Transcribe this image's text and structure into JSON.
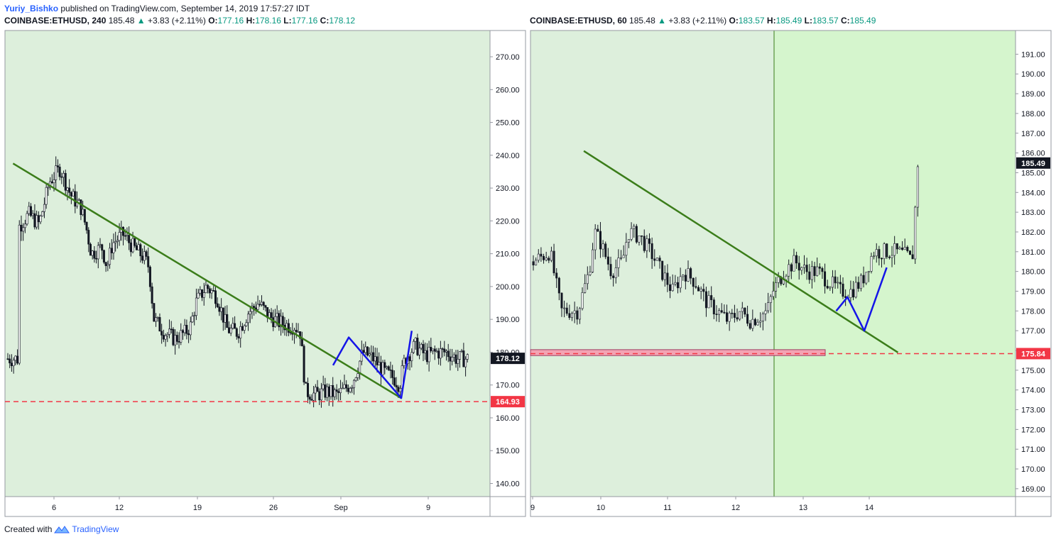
{
  "header": {
    "author": "Yuriy_Bishko",
    "published_text": "published on TradingView.com, September 14, 2019 17:57:27 IDT"
  },
  "footer": {
    "created_with": "Created with",
    "brand": "TradingView"
  },
  "colors": {
    "panel_bg": "#ddefdc",
    "highlight_bg": "#d5f5cd",
    "trendline": "#3b7d1a",
    "pattern": "#1515e8",
    "support": "#f23645",
    "zone_fill": "#f3a3b3",
    "candle": "#131722",
    "up": "#089981"
  },
  "charts": [
    {
      "symbol": "COINBASE:ETHUSD",
      "interval": "240",
      "last": "185.48",
      "arrow": "▲",
      "change": "+3.83 (+2.11%)",
      "o": "177.16",
      "h": "178.16",
      "l": "177.16",
      "c": "178.12",
      "y_ticks": [
        "270.00",
        "260.00",
        "250.00",
        "240.00",
        "230.00",
        "220.00",
        "210.00",
        "200.00",
        "190.00",
        "180.00",
        "170.00",
        "160.00",
        "150.00",
        "140.00"
      ],
      "x_ticks": [
        "6",
        "12",
        "19",
        "26",
        "Sep",
        "9"
      ],
      "price_badge": "178.12",
      "support_badge": "164.93"
    },
    {
      "symbol": "COINBASE:ETHUSD",
      "interval": "60",
      "last": "185.48",
      "arrow": "▲",
      "change": "+3.83 (+2.11%)",
      "o": "183.57",
      "h": "185.49",
      "l": "183.57",
      "c": "185.49",
      "y_ticks": [
        "191.00",
        "190.00",
        "189.00",
        "188.00",
        "187.00",
        "186.00",
        "185.00",
        "184.00",
        "183.00",
        "182.00",
        "181.00",
        "180.00",
        "179.00",
        "178.00",
        "177.00",
        "176.00",
        "175.00",
        "174.00",
        "173.00",
        "172.00",
        "171.00",
        "170.00",
        "169.00"
      ],
      "x_ticks": [
        "9",
        "10",
        "11",
        "12",
        "13",
        "14"
      ],
      "price_badge": "185.49",
      "support_badge": "175.84"
    }
  ],
  "chart_data": [
    {
      "type": "candlestick",
      "symbol": "COINBASE:ETHUSD",
      "interval": "240",
      "ylim": [
        136,
        278
      ],
      "x_ticks": [
        "6",
        "12",
        "19",
        "26",
        "Sep",
        "9"
      ],
      "close_path": [
        [
          2,
          218
        ],
        [
          4,
          222
        ],
        [
          6,
          219
        ],
        [
          8,
          232
        ],
        [
          10,
          236
        ],
        [
          12,
          228
        ],
        [
          14,
          224
        ],
        [
          15,
          218
        ],
        [
          16,
          210
        ],
        [
          18,
          212
        ],
        [
          19,
          206
        ],
        [
          20,
          213
        ],
        [
          22,
          216
        ],
        [
          24,
          212
        ],
        [
          26,
          209
        ],
        [
          27,
          206
        ],
        [
          28,
          190
        ],
        [
          30,
          186
        ],
        [
          32,
          184
        ],
        [
          34,
          186
        ],
        [
          35,
          188
        ],
        [
          36,
          195
        ],
        [
          38,
          200
        ],
        [
          40,
          197
        ],
        [
          42,
          187
        ],
        [
          44,
          186
        ],
        [
          46,
          192
        ],
        [
          48,
          195
        ],
        [
          50,
          191
        ],
        [
          52,
          189
        ],
        [
          54,
          188
        ],
        [
          55,
          188
        ],
        [
          56,
          186
        ],
        [
          57,
          168
        ],
        [
          59,
          167
        ],
        [
          61,
          168
        ],
        [
          63,
          167
        ],
        [
          64,
          168
        ],
        [
          66,
          171
        ],
        [
          68,
          180
        ],
        [
          70,
          178
        ],
        [
          72,
          174
        ],
        [
          74,
          172
        ],
        [
          75,
          170
        ],
        [
          76,
          178
        ],
        [
          78,
          182
        ],
        [
          80,
          179
        ],
        [
          82,
          180
        ],
        [
          84,
          180
        ],
        [
          86,
          178
        ],
        [
          88,
          178
        ]
      ],
      "trendlines": [
        {
          "name": "descending resistance",
          "points": [
            [
              1,
              237.5
            ],
            [
              75,
              166
            ]
          ]
        }
      ],
      "pattern_lines": [
        {
          "name": "projection zigzag",
          "points": [
            [
              62,
              176
            ],
            [
              65,
              184.5
            ],
            [
              75,
              166
            ],
            [
              77,
              186.5
            ]
          ]
        }
      ],
      "support": 164.93,
      "last_close": 178.12
    },
    {
      "type": "candlestick",
      "symbol": "COINBASE:ETHUSD",
      "interval": "60",
      "ylim": [
        168.6,
        192.2
      ],
      "x_ticks": [
        "9",
        "10",
        "11",
        "12",
        "13",
        "14"
      ],
      "close_path": [
        [
          0,
          180.5
        ],
        [
          3,
          181
        ],
        [
          5,
          178
        ],
        [
          8,
          178
        ],
        [
          10,
          180
        ],
        [
          11,
          182
        ],
        [
          12,
          181.5
        ],
        [
          14,
          180
        ],
        [
          16,
          180.5
        ],
        [
          17,
          182
        ],
        [
          19,
          181.8
        ],
        [
          21,
          181
        ],
        [
          23,
          180
        ],
        [
          25,
          179
        ],
        [
          27,
          180
        ],
        [
          29,
          179.5
        ],
        [
          31,
          178.5
        ],
        [
          33,
          178
        ],
        [
          35,
          177.5
        ],
        [
          37,
          178
        ],
        [
          39,
          177.5
        ],
        [
          41,
          177.8
        ],
        [
          42,
          178
        ],
        [
          43,
          179
        ],
        [
          45,
          180
        ],
        [
          47,
          180.5
        ],
        [
          49,
          180
        ],
        [
          51,
          180
        ],
        [
          53,
          179.5
        ],
        [
          55,
          179
        ],
        [
          57,
          179
        ],
        [
          59,
          179.5
        ],
        [
          61,
          181
        ],
        [
          63,
          181
        ],
        [
          65,
          181
        ],
        [
          67,
          180.8
        ],
        [
          68,
          180.5
        ],
        [
          69,
          185.5
        ]
      ],
      "trendlines": [
        {
          "name": "descending resistance",
          "points": [
            [
              9,
              186.1
            ],
            [
              65,
              175.9
            ]
          ]
        }
      ],
      "pattern_lines": [
        {
          "name": "projection curve",
          "points": [
            [
              54,
              178
            ],
            [
              56,
              178.7
            ],
            [
              59,
              177
            ],
            [
              63,
              180.2
            ]
          ]
        }
      ],
      "support_zone": [
        175.74,
        176.04
      ],
      "support": 175.84,
      "highlight_from_x": 52,
      "last_close": 185.49
    }
  ]
}
